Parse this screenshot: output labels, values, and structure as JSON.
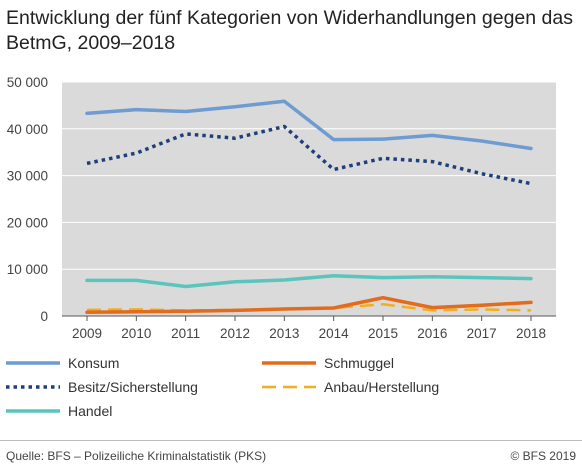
{
  "title": "Entwicklung der fünf Kategorien von Widerhandlungen gegen das BetmG, 2009–2018",
  "chart_data": {
    "type": "line",
    "title": "Entwicklung der fünf Kategorien von Widerhandlungen gegen das BetmG, 2009–2018",
    "x": [
      "2009",
      "2010",
      "2011",
      "2012",
      "2013",
      "2014",
      "2015",
      "2016",
      "2017",
      "2018"
    ],
    "ylim": [
      0,
      50000
    ],
    "yticks": [
      0,
      10000,
      20000,
      30000,
      40000,
      50000
    ],
    "ytick_labels": [
      "0",
      "10 000",
      "20 000",
      "30 000",
      "40 000",
      "50 000"
    ],
    "grid": true,
    "legend_position": "bottom",
    "series": [
      {
        "name": "Konsum",
        "color": "#6e9bd1",
        "style": "solid",
        "values": [
          43300,
          44100,
          43700,
          44700,
          45900,
          37700,
          37800,
          38600,
          37400,
          35800
        ]
      },
      {
        "name": "Besitz/Sicherstellung",
        "color": "#1f3f7a",
        "style": "dotted",
        "values": [
          32600,
          34800,
          38900,
          38000,
          40500,
          31300,
          33700,
          33000,
          30400,
          28300
        ]
      },
      {
        "name": "Handel",
        "color": "#5bc4bd",
        "style": "solid",
        "values": [
          7600,
          7600,
          6300,
          7300,
          7700,
          8600,
          8200,
          8400,
          8200,
          8000
        ]
      },
      {
        "name": "Schmuggel",
        "color": "#e26b1c",
        "style": "solid",
        "values": [
          800,
          900,
          1000,
          1200,
          1500,
          1700,
          3900,
          1800,
          2300,
          2900
        ]
      },
      {
        "name": "Anbau/Herstellung",
        "color": "#f3ae1c",
        "style": "dashed",
        "values": [
          1300,
          1400,
          1200,
          1300,
          1500,
          1700,
          2500,
          1200,
          1400,
          1200
        ]
      }
    ]
  },
  "legend": [
    {
      "name": "Konsum",
      "color": "#6e9bd1",
      "style": "solid"
    },
    {
      "name": "Schmuggel",
      "color": "#e26b1c",
      "style": "solid"
    },
    {
      "name": "Besitz/Sicherstellung",
      "color": "#1f3f7a",
      "style": "dotted"
    },
    {
      "name": "Anbau/Herstellung",
      "color": "#f3ae1c",
      "style": "dashed"
    },
    {
      "name": "Handel",
      "color": "#5bc4bd",
      "style": "solid"
    }
  ],
  "footer": {
    "source": "Quelle: BFS – Polizeiliche Kriminalstatistik (PKS)",
    "copyright": "© BFS 2019"
  }
}
